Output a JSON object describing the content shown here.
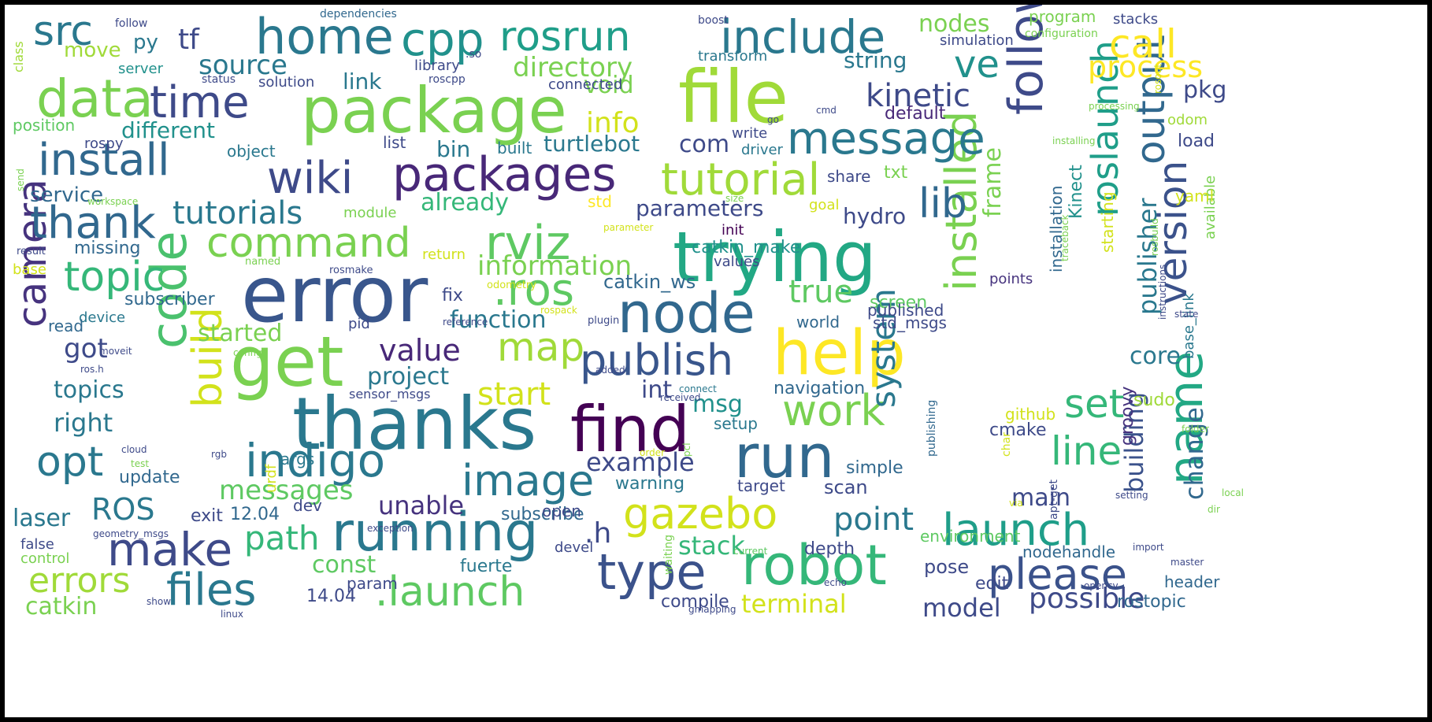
{
  "words": [
    {
      "text": "error",
      "color": "#39568c"
    },
    {
      "text": "thanks",
      "color": "#2a788e"
    },
    {
      "text": "trying",
      "color": "#22a884"
    },
    {
      "text": "file",
      "color": "#a0da39"
    },
    {
      "text": "package",
      "color": "#7ad151"
    },
    {
      "text": "get",
      "color": "#7ad151"
    },
    {
      "text": "node",
      "color": "#31688e"
    },
    {
      "text": "help",
      "color": "#fde725"
    },
    {
      "text": "find",
      "color": "#440154"
    },
    {
      "text": "run",
      "color": "#31688e"
    },
    {
      "text": "robot",
      "color": "#35b779"
    },
    {
      "text": "running",
      "color": "#2a788e"
    },
    {
      "text": "following",
      "color": "#3e4a89"
    },
    {
      "text": "code",
      "color": "#4ac16d"
    },
    {
      "text": "camera",
      "color": "#46337e"
    },
    {
      "text": "installed",
      "color": "#7ad151"
    },
    {
      "text": "name",
      "color": "#22a884"
    },
    {
      "text": "home",
      "color": "#2a788e"
    },
    {
      "text": "cpp",
      "color": "#21918c"
    },
    {
      "text": "rosrun",
      "color": "#1f9e89"
    },
    {
      "text": "include",
      "color": "#2a788e"
    },
    {
      "text": "src",
      "color": "#2a788e"
    },
    {
      "text": "data",
      "color": "#7ad151"
    },
    {
      "text": "time",
      "color": "#3e4a89"
    },
    {
      "text": "wiki",
      "color": "#3e4a89"
    },
    {
      "text": "packages",
      "color": "#482878"
    },
    {
      "text": "message",
      "color": "#2a788e"
    },
    {
      "text": "install",
      "color": "#31688e"
    },
    {
      "text": "thank",
      "color": "#31688e"
    },
    {
      "text": "command",
      "color": "#7ad151"
    },
    {
      "text": "rviz",
      "color": "#5ec962"
    },
    {
      "text": "tutorial",
      "color": "#a0da39"
    },
    {
      "text": "lib",
      "color": "#31688e"
    },
    {
      "text": "topic",
      "color": "#35b779"
    },
    {
      "text": ".ros",
      "color": "#5ec962"
    },
    {
      "text": "opt",
      "color": "#2a788e"
    },
    {
      "text": "indigo",
      "color": "#2a788e"
    },
    {
      "text": "image",
      "color": "#2a788e"
    },
    {
      "text": "make",
      "color": "#3e4a89"
    },
    {
      "text": "files",
      "color": "#2a788e"
    },
    {
      "text": "type",
      "color": "#3b528b"
    },
    {
      "text": ".launch",
      "color": "#5ec962"
    },
    {
      "text": "launch",
      "color": "#1f9e89"
    },
    {
      "text": "please",
      "color": "#3b528b"
    },
    {
      "text": "gazebo",
      "color": "#d2e21b"
    },
    {
      "text": "publish",
      "color": "#39568c"
    },
    {
      "text": "map",
      "color": "#a0da39"
    },
    {
      "text": "line",
      "color": "#35b779"
    },
    {
      "text": "set",
      "color": "#35b779"
    },
    {
      "text": "work",
      "color": "#7ad151"
    },
    {
      "text": "build",
      "color": "#d2e21b"
    },
    {
      "text": "output",
      "color": "#31688e"
    },
    {
      "text": "version",
      "color": "#3b528b"
    },
    {
      "text": "roslaunch",
      "color": "#1f9e89"
    },
    {
      "text": "ve",
      "color": "#21918c"
    },
    {
      "text": "call",
      "color": "#fde725"
    },
    {
      "text": "process",
      "color": "#fde725"
    },
    {
      "text": "kinetic",
      "color": "#3e4a89"
    },
    {
      "text": "directory",
      "color": "#7ad151"
    },
    {
      "text": "source",
      "color": "#2a788e"
    },
    {
      "text": "tf",
      "color": "#3e4a89"
    },
    {
      "text": "move",
      "color": "#a0da39"
    },
    {
      "text": "py",
      "color": "#2a788e"
    },
    {
      "text": "link",
      "color": "#2a788e"
    },
    {
      "text": "nodes",
      "color": "#7ad151"
    },
    {
      "text": "string",
      "color": "#2a788e"
    },
    {
      "text": "info",
      "color": "#d2e21b"
    },
    {
      "text": "different",
      "color": "#21918c"
    },
    {
      "text": "tutorials",
      "color": "#2a788e"
    },
    {
      "text": "service",
      "color": "#31688e"
    },
    {
      "text": "already",
      "color": "#35b779"
    },
    {
      "text": "parameters",
      "color": "#3e4a89"
    },
    {
      "text": "hydro",
      "color": "#3e4a89"
    },
    {
      "text": "information",
      "color": "#7ad151"
    },
    {
      "text": "true",
      "color": "#5ec962"
    },
    {
      "text": "got",
      "color": "#3e4a89"
    },
    {
      "text": "started",
      "color": "#7ad151"
    },
    {
      "text": "value",
      "color": "#482878"
    },
    {
      "text": "function",
      "color": "#2a788e"
    },
    {
      "text": "project",
      "color": "#2a788e"
    },
    {
      "text": "topics",
      "color": "#2a788e"
    },
    {
      "text": "start",
      "color": "#d2e21b"
    },
    {
      "text": "right",
      "color": "#2a788e"
    },
    {
      "text": "example",
      "color": "#3e4a89"
    },
    {
      "text": "ROS",
      "color": "#2a788e"
    },
    {
      "text": "messages",
      "color": "#5ec962"
    },
    {
      "text": "unable",
      "color": "#46337e"
    },
    {
      "text": "path",
      "color": "#35b779"
    },
    {
      "text": "point",
      "color": "#2a788e"
    },
    {
      "text": "stack",
      "color": "#35b779"
    },
    {
      "text": "errors",
      "color": "#a0da39"
    },
    {
      "text": "catkin",
      "color": "#7ad151"
    },
    {
      "text": "const",
      "color": "#5ec962"
    },
    {
      "text": "laser",
      "color": "#2a788e"
    },
    {
      "text": "main",
      "color": "#3e4a89"
    },
    {
      "text": "possible",
      "color": "#3e4a89"
    },
    {
      "text": "model",
      "color": "#3e4a89"
    },
    {
      "text": "terminal",
      "color": "#d2e21b"
    },
    {
      "text": "turtlebot",
      "color": "#2a788e"
    },
    {
      "text": "bin",
      "color": "#2a788e"
    },
    {
      "text": "com",
      "color": "#3e4a89"
    },
    {
      "text": "frame",
      "color": "#7ad151"
    },
    {
      "text": "system",
      "color": "#2a788e"
    },
    {
      "text": "publisher",
      "color": "#2a788e"
    },
    {
      "text": "building",
      "color": "#3b528b"
    },
    {
      "text": "change",
      "color": "#31688e"
    },
    {
      "text": "core",
      "color": "#2a788e"
    },
    {
      "text": "pkg",
      "color": "#3e4a89"
    },
    {
      "text": "void",
      "color": "#7ad151"
    },
    {
      "text": "msg",
      "color": "#21918c"
    },
    {
      "text": "int",
      "color": "#3e4a89"
    },
    {
      "text": ".h",
      "color": "#3e4a89"
    },
    {
      "text": "catkin_ws",
      "color": "#31688e"
    },
    {
      "text": "catkin_make",
      "color": "#21918c"
    },
    {
      "text": "navigation",
      "color": "#31688e"
    },
    {
      "text": "cmake",
      "color": "#3e4a89"
    },
    {
      "text": "sudo",
      "color": "#a0da39"
    },
    {
      "text": "github",
      "color": "#d2e21b"
    },
    {
      "text": "groovy",
      "color": "#46337e"
    },
    {
      "text": "update",
      "color": "#31688e"
    },
    {
      "text": "missing",
      "color": "#31688e"
    },
    {
      "text": "subscriber",
      "color": "#31688e"
    },
    {
      "text": "warning",
      "color": "#2a788e"
    },
    {
      "text": "subscribe",
      "color": "#31688e"
    },
    {
      "text": "simple",
      "color": "#31688e"
    },
    {
      "text": "scan",
      "color": "#3e4a89"
    },
    {
      "text": "edit",
      "color": "#3e4a89"
    },
    {
      "text": "pose",
      "color": "#3e4a89"
    },
    {
      "text": "fuerte",
      "color": "#2a788e"
    },
    {
      "text": "compile",
      "color": "#3e4a89"
    },
    {
      "text": "depth",
      "color": "#3e4a89"
    },
    {
      "text": "12.04",
      "color": "#31688e"
    },
    {
      "text": "14.04",
      "color": "#3e4a89"
    },
    {
      "text": "rostopic",
      "color": "#31688e"
    },
    {
      "text": "nodehandle",
      "color": "#31688e"
    },
    {
      "text": "environment",
      "color": "#5ec962"
    },
    {
      "text": "header",
      "color": "#31688e"
    },
    {
      "text": "installation",
      "color": "#31688e"
    },
    {
      "text": "Kinect",
      "color": "#21918c"
    },
    {
      "text": "starting",
      "color": "#d2e21b"
    },
    {
      "text": "screen",
      "color": "#5ec962"
    },
    {
      "text": "published",
      "color": "#3e4a89"
    },
    {
      "text": "std_msgs",
      "color": "#3e4a89"
    },
    {
      "text": "world",
      "color": "#31688e"
    },
    {
      "text": "points",
      "color": "#46337e"
    },
    {
      "text": "available",
      "color": "#7ad151"
    },
    {
      "text": "load",
      "color": "#3e4a89"
    },
    {
      "text": "yaml",
      "color": "#d2e21b"
    },
    {
      "text": "odom",
      "color": "#a0da39"
    },
    {
      "text": "base_link",
      "color": "#2a788e"
    },
    {
      "text": "default",
      "color": "#482878"
    },
    {
      "text": "txt",
      "color": "#7ad151"
    },
    {
      "text": "share",
      "color": "#3e4a89"
    },
    {
      "text": "goal",
      "color": "#d2e21b"
    },
    {
      "text": "init",
      "color": "#440154"
    },
    {
      "text": "values",
      "color": "#3e4a89"
    },
    {
      "text": "write",
      "color": "#3e4a89"
    },
    {
      "text": "driver",
      "color": "#2a788e"
    },
    {
      "text": "std",
      "color": "#fde725"
    },
    {
      "text": "built",
      "color": "#2a788e"
    },
    {
      "text": "object",
      "color": "#2a788e"
    },
    {
      "text": "list",
      "color": "#3e4a89"
    },
    {
      "text": "position",
      "color": "#5ec962"
    },
    {
      "text": "rospy",
      "color": "#3e4a89"
    },
    {
      "text": "server",
      "color": "#21918c"
    },
    {
      "text": "solution",
      "color": "#3e4a89"
    },
    {
      "text": "connected",
      "color": "#3e4a89"
    },
    {
      "text": "library",
      "color": "#3e4a89"
    },
    {
      "text": "transform",
      "color": "#2a788e"
    },
    {
      "text": "simulation",
      "color": "#3e4a89"
    },
    {
      "text": "program",
      "color": "#7ad151"
    },
    {
      "text": "stacks",
      "color": "#3e4a89"
    },
    {
      "text": "configuration",
      "color": "#7ad151"
    },
    {
      "text": "dependencies",
      "color": "#31688e"
    },
    {
      "text": "follow",
      "color": "#3e4a89"
    },
    {
      "text": "boost",
      "color": "#3e4a89"
    },
    {
      "text": "class",
      "color": "#a0da39"
    },
    {
      "text": "status",
      "color": "#3e4a89"
    },
    {
      "text": "roscpp",
      "color": "#3e4a89"
    },
    {
      "text": "return",
      "color": "#d2e21b"
    },
    {
      "text": "module",
      "color": "#7ad151"
    },
    {
      "text": "device",
      "color": "#2a788e"
    },
    {
      "text": "read",
      "color": "#31688e"
    },
    {
      "text": "fix",
      "color": "#3e4a89"
    },
    {
      "text": "pid",
      "color": "#3e4a89"
    },
    {
      "text": "exit",
      "color": "#3e4a89"
    },
    {
      "text": "false",
      "color": "#3e4a89"
    },
    {
      "text": "control",
      "color": "#7ad151"
    },
    {
      "text": "args",
      "color": "#2a788e"
    },
    {
      "text": "dev",
      "color": "#3e4a89"
    },
    {
      "text": "open",
      "color": "#3e4a89"
    },
    {
      "text": "devel",
      "color": "#3e4a89"
    },
    {
      "text": "param",
      "color": "#3e4a89"
    },
    {
      "text": "setup",
      "color": "#2a788e"
    },
    {
      "text": "target",
      "color": "#3e4a89"
    },
    {
      "text": "urdf",
      "color": "#d2e21b"
    },
    {
      "text": "sensor_msgs",
      "color": "#3e4a89"
    },
    {
      "text": "base",
      "color": "#d2e21b"
    },
    {
      "text": "result",
      "color": "#3e4a89"
    },
    {
      "text": "rosmake",
      "color": "#3e4a89"
    },
    {
      "text": "named",
      "color": "#7ad151"
    },
    {
      "text": "odometry",
      "color": "#d2e21b"
    },
    {
      "text": "rospack",
      "color": "#d2e21b"
    },
    {
      "text": "workspace",
      "color": "#7ad151"
    },
    {
      "text": "parameter",
      "color": "#d2e21b"
    },
    {
      "text": "size",
      "color": "#7ad151"
    },
    {
      "text": "plugin",
      "color": "#3e4a89"
    },
    {
      "text": "reference",
      "color": "#3e4a89"
    },
    {
      "text": "moveit",
      "color": "#3e4a89"
    },
    {
      "text": "config",
      "color": "#7ad151"
    },
    {
      "text": "ros.h",
      "color": "#3e4a89"
    },
    {
      "text": "added",
      "color": "#3e4a89"
    },
    {
      "text": "connect",
      "color": "#2a788e"
    },
    {
      "text": "received",
      "color": "#3e4a89"
    },
    {
      "text": "rgb",
      "color": "#3e4a89"
    },
    {
      "text": "cloud",
      "color": "#3e4a89"
    },
    {
      "text": "test",
      "color": "#7ad151"
    },
    {
      "text": "geometry_msgs",
      "color": "#3e4a89"
    },
    {
      "text": "exception",
      "color": "#3e4a89"
    },
    {
      "text": "show",
      "color": "#3e4a89"
    },
    {
      "text": "linux",
      "color": "#3e4a89"
    },
    {
      "text": "echo",
      "color": "#3e4a89"
    },
    {
      "text": "gmapping",
      "color": "#3e4a89"
    },
    {
      "text": "current",
      "color": "#5ec962"
    },
    {
      "text": "import",
      "color": "#3e4a89"
    },
    {
      "text": "master",
      "color": "#3e4a89"
    },
    {
      "text": "opencv",
      "color": "#3e4a89"
    },
    {
      "text": "setting",
      "color": "#3e4a89"
    },
    {
      "text": "dir",
      "color": "#7ad151"
    },
    {
      "text": "local",
      "color": "#7ad151"
    },
    {
      "text": "folder",
      "color": "#7ad151"
    },
    {
      "text": "via",
      "color": "#d2e21b"
    },
    {
      "text": "char",
      "color": "#d2e21b"
    },
    {
      "text": "apt-get",
      "color": "#3e4a89"
    },
    {
      "text": "publishing",
      "color": "#31688e"
    },
    {
      "text": "waiting",
      "color": "#7ad151"
    },
    {
      "text": "pcl",
      "color": "#7ad151"
    },
    {
      "text": "order",
      "color": "#d2e21b"
    },
    {
      "text": "instructions",
      "color": "#3e4a89"
    },
    {
      "text": "traceback",
      "color": "#7ad151"
    },
    {
      "text": "state",
      "color": "#3e4a89"
    },
    {
      "text": "send",
      "color": "#7ad151"
    },
    {
      "text": "processing",
      "color": "#7ad151"
    },
    {
      "text": "installing",
      "color": "#7ad151"
    },
    {
      "text": "cmd",
      "color": "#3e4a89"
    },
    {
      "text": "go",
      "color": "#3e4a89"
    },
    {
      "text": "rosout",
      "color": "#d2e21b"
    },
    {
      "text": "rosbuild",
      "color": "#7ad151"
    },
    {
      "text": ".so",
      "color": "#3e4a89"
    }
  ]
}
